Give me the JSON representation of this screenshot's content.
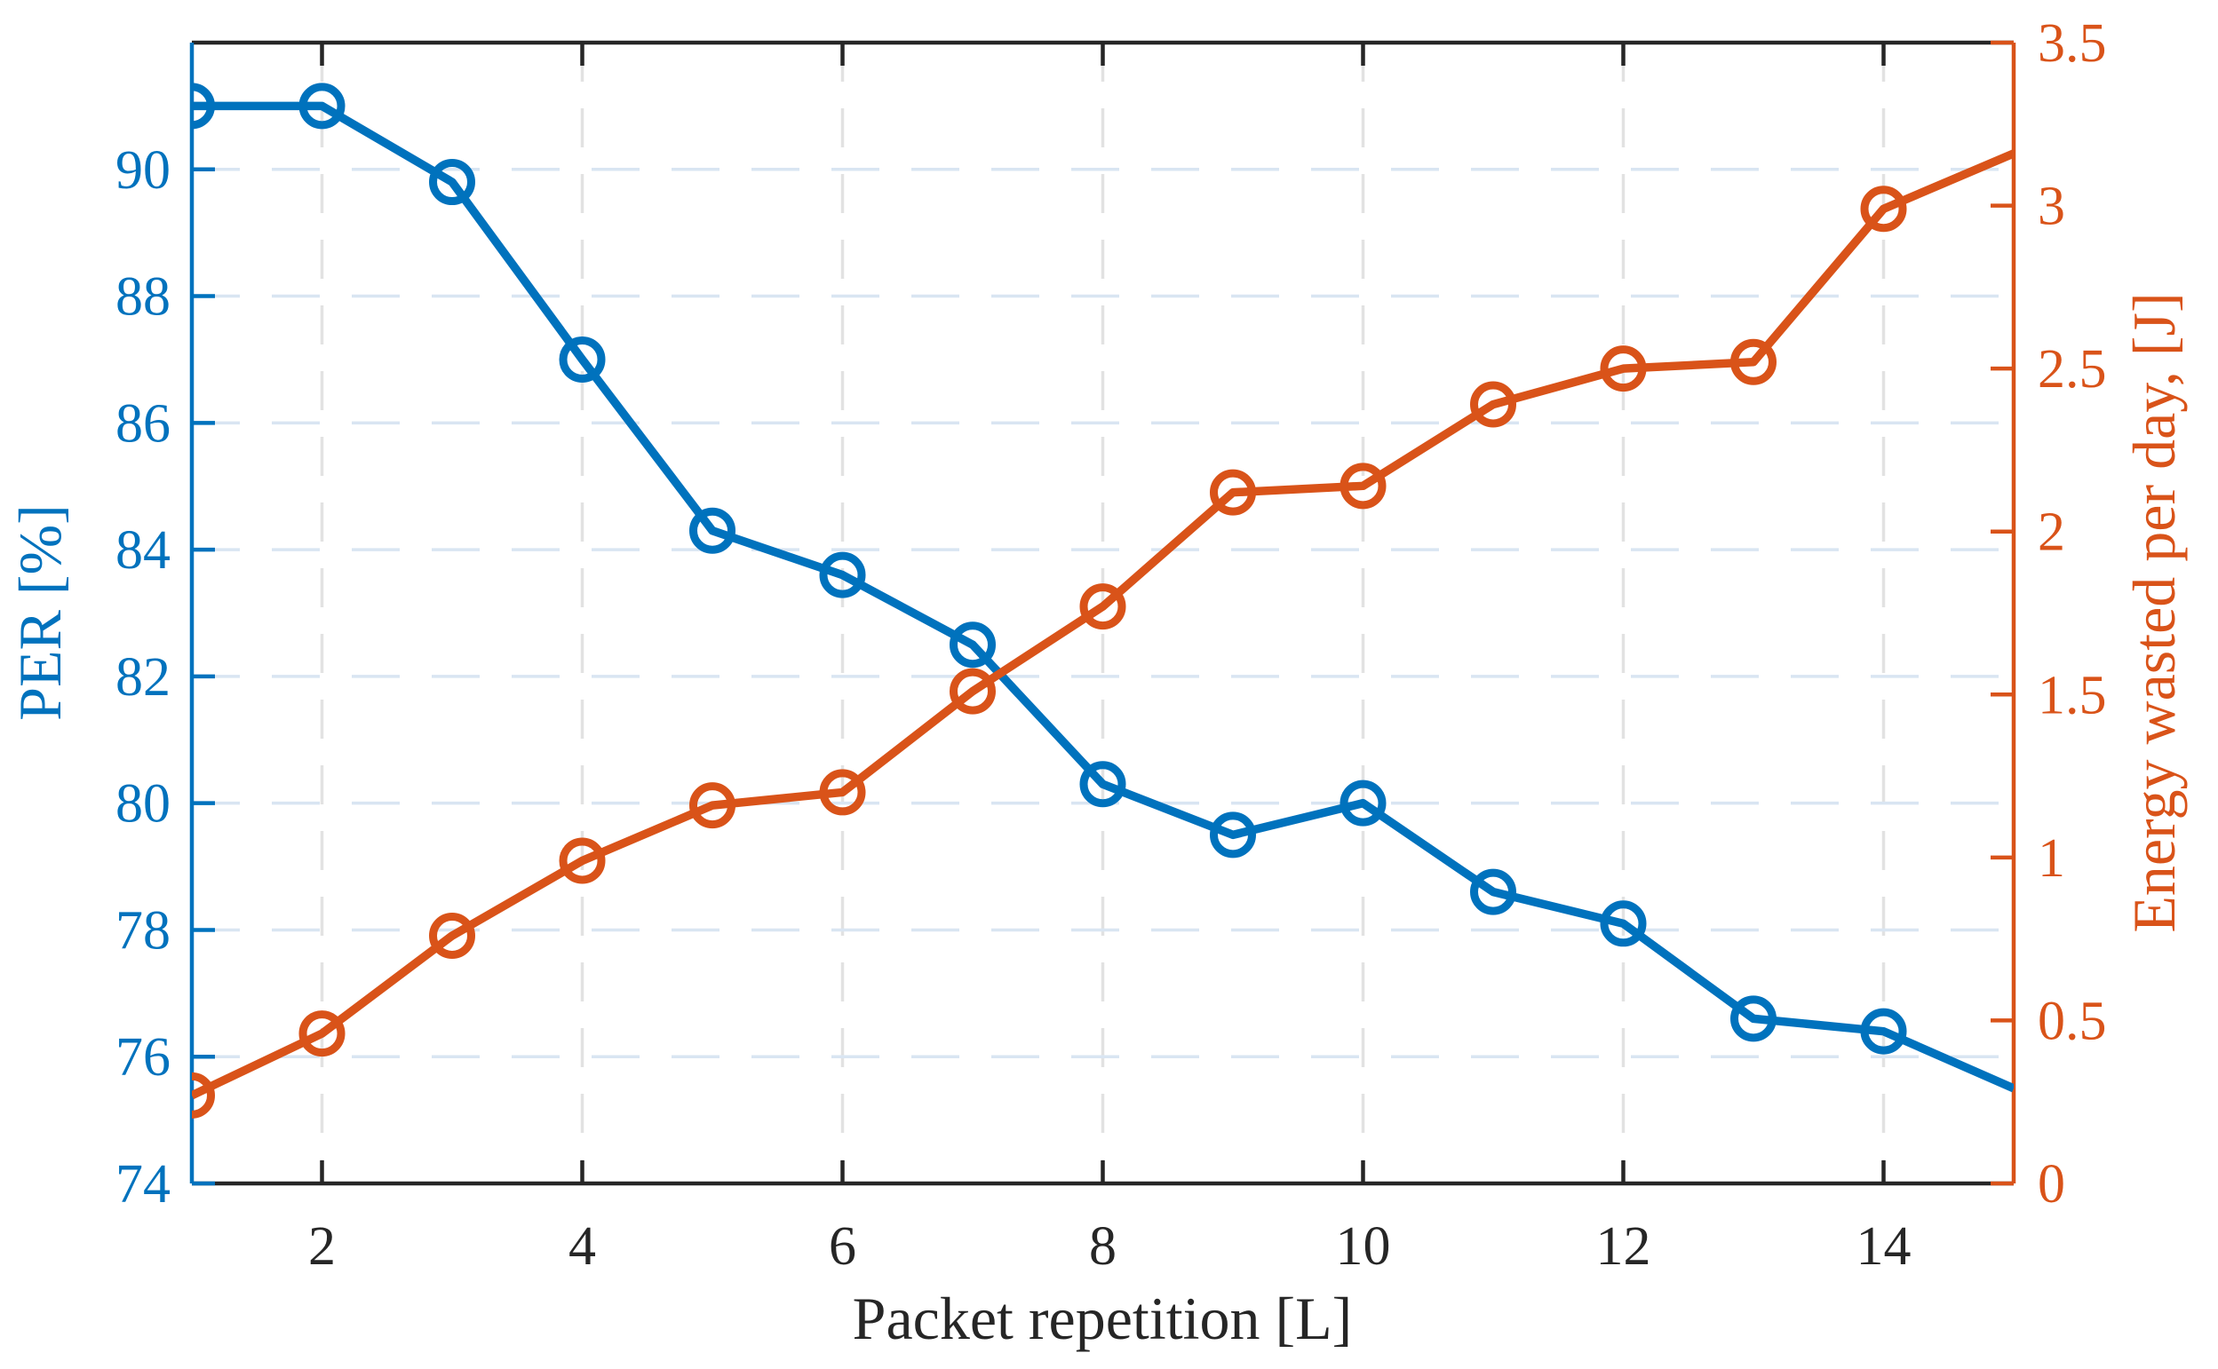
{
  "figure": {
    "background": "#ffffff",
    "title": ""
  },
  "chart_data": {
    "type": "line",
    "title": "",
    "xlabel": "Packet repetition [L]",
    "ylabel_left": "PER [%]",
    "ylabel_right": "Energy wasted per day, [J]",
    "xlim": [
      1,
      15
    ],
    "ylim_left": [
      74,
      92
    ],
    "ylim_right": [
      0,
      3.5
    ],
    "x_ticks": [
      2,
      4,
      6,
      8,
      10,
      12,
      14
    ],
    "y_ticks_left": [
      74,
      76,
      78,
      80,
      82,
      84,
      86,
      88,
      90
    ],
    "y_ticks_right": [
      0,
      0.5,
      1,
      1.5,
      2,
      2.5,
      3,
      3.5
    ],
    "grid": true,
    "legend": "none",
    "x": [
      1,
      2,
      3,
      4,
      5,
      6,
      7,
      8,
      9,
      10,
      11,
      12,
      13,
      14,
      15
    ],
    "series": [
      {
        "name": "PER",
        "axis": "left",
        "color": "#0072BD",
        "marker": "circle",
        "markers_drawn_through_x": 14,
        "values": [
          91.0,
          91.0,
          89.8,
          87.0,
          84.3,
          83.6,
          82.5,
          80.3,
          79.5,
          80.0,
          78.6,
          78.1,
          76.6,
          76.4,
          75.5
        ]
      },
      {
        "name": "Energy wasted per day",
        "axis": "right",
        "color": "#D95319",
        "marker": "circle",
        "markers_drawn_through_x": 14,
        "values": [
          0.27,
          0.46,
          0.76,
          0.99,
          1.16,
          1.2,
          1.51,
          1.77,
          2.12,
          2.14,
          2.39,
          2.5,
          2.52,
          2.99,
          3.16
        ]
      }
    ],
    "colors": {
      "left_axis": "#0072BD",
      "right_axis": "#D95319",
      "x_axis": "#262626",
      "grid_horizontal": "#d9e5f2",
      "grid_vertical": "#e2e2e2"
    }
  }
}
